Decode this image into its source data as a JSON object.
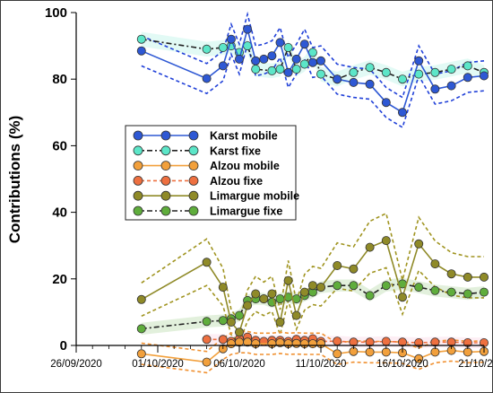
{
  "chart_data": {
    "type": "line",
    "title": "",
    "xlabel": "",
    "ylabel": "Contributions (%)",
    "xlim": [
      "2020-09-26",
      "2020-10-21"
    ],
    "ylim": [
      0,
      100
    ],
    "x_ticks": [
      "26/09/2020",
      "01/10/2020",
      "06/10/2020",
      "11/10/2020",
      "16/10/2020",
      "21/10/2020"
    ],
    "y_ticks": [
      0,
      20,
      40,
      60,
      80,
      100
    ],
    "grid": false,
    "legend_position": "center-left",
    "colors": {
      "karst_mobile": "#2e58d4",
      "karst_fixe": "#5ce6c8",
      "alzou_mobile": "#f2a03c",
      "alzou_fixe": "#ee7040",
      "limargue_mobile": "#8f8a28",
      "limargue_fixe": "#5fad3c",
      "karst_band": "#2040d8",
      "limargue_band": "#a09420",
      "alzou_band": "#f09030"
    },
    "series": [
      {
        "name": "Karst mobile",
        "x": [
          "2020-09-30",
          "2020-10-04",
          "2020-10-05",
          "2020-10-05 12:00",
          "2020-10-06",
          "2020-10-06 12:00",
          "2020-10-07",
          "2020-10-07 12:00",
          "2020-10-08",
          "2020-10-08 12:00",
          "2020-10-09",
          "2020-10-09 12:00",
          "2020-10-10",
          "2020-10-10 12:00",
          "2020-10-11",
          "2020-10-12",
          "2020-10-13",
          "2020-10-14",
          "2020-10-15",
          "2020-10-16",
          "2020-10-17",
          "2020-10-18",
          "2020-10-19",
          "2020-10-20",
          "2020-10-21"
        ],
        "y": [
          88.5,
          80.2,
          84.0,
          92.0,
          86.0,
          95.0,
          85.5,
          86.0,
          87.0,
          91.0,
          82.0,
          86.0,
          90.5,
          85.0,
          85.5,
          80.0,
          79.0,
          78.5,
          73.0,
          70.0,
          85.5,
          77.0,
          78.0,
          80.5,
          81.0
        ]
      },
      {
        "name": "Karst fixe",
        "x": [
          "2020-09-30",
          "2020-10-04",
          "2020-10-05",
          "2020-10-05 12:00",
          "2020-10-06",
          "2020-10-06 12:00",
          "2020-10-07",
          "2020-10-08",
          "2020-10-08 12:00",
          "2020-10-09",
          "2020-10-09 12:00",
          "2020-10-10",
          "2020-10-10 12:00",
          "2020-10-11",
          "2020-10-12",
          "2020-10-13",
          "2020-10-14",
          "2020-10-15",
          "2020-10-16",
          "2020-10-17",
          "2020-10-18",
          "2020-10-19",
          "2020-10-20",
          "2020-10-21"
        ],
        "y": [
          92.0,
          89.0,
          89.5,
          90.0,
          88.0,
          90.0,
          83.0,
          82.5,
          83.0,
          89.5,
          83.0,
          84.5,
          88.0,
          81.5,
          80.0,
          82.0,
          83.5,
          82.0,
          80.0,
          81.5,
          82.0,
          83.0,
          84.0,
          82.0
        ]
      },
      {
        "name": "Alzou mobile",
        "x": [
          "2020-09-30",
          "2020-10-04",
          "2020-10-05",
          "2020-10-05 12:00",
          "2020-10-06",
          "2020-10-06 12:00",
          "2020-10-07",
          "2020-10-08",
          "2020-10-08 12:00",
          "2020-10-09",
          "2020-10-09 12:00",
          "2020-10-10",
          "2020-10-10 12:00",
          "2020-10-11",
          "2020-10-12",
          "2020-10-13",
          "2020-10-14",
          "2020-10-15",
          "2020-10-16",
          "2020-10-17",
          "2020-10-18",
          "2020-10-19",
          "2020-10-20",
          "2020-10-21"
        ],
        "y": [
          -2.5,
          -5.0,
          -1.0,
          0.5,
          1.0,
          1.0,
          0.5,
          0.5,
          0.8,
          0.5,
          0.6,
          0.5,
          0.5,
          0.5,
          -2.5,
          -1.8,
          -2.0,
          -2.0,
          -2.2,
          -4.0,
          -2.0,
          -1.5,
          -2.0,
          -1.8
        ]
      },
      {
        "name": "Alzou fixe",
        "x": [
          "2020-10-04",
          "2020-10-05",
          "2020-10-05 12:00",
          "2020-10-06",
          "2020-10-06 12:00",
          "2020-10-07",
          "2020-10-07 12:00",
          "2020-10-08",
          "2020-10-08 12:00",
          "2020-10-09",
          "2020-10-09 12:00",
          "2020-10-10",
          "2020-10-10 12:00",
          "2020-10-11",
          "2020-10-12",
          "2020-10-13",
          "2020-10-14",
          "2020-10-15",
          "2020-10-16",
          "2020-10-17",
          "2020-10-18",
          "2020-10-19",
          "2020-10-20",
          "2020-10-21"
        ],
        "y": [
          1.8,
          1.8,
          1.2,
          2.0,
          2.5,
          1.5,
          1.2,
          1.5,
          1.5,
          1.2,
          1.8,
          1.5,
          2.0,
          1.2,
          1.3,
          1.0,
          1.0,
          1.2,
          1.0,
          0.8,
          1.0,
          1.0,
          0.8,
          0.8
        ]
      },
      {
        "name": "Limargue mobile",
        "x": [
          "2020-09-30",
          "2020-10-04",
          "2020-10-05",
          "2020-10-05 12:00",
          "2020-10-06",
          "2020-10-06 12:00",
          "2020-10-07",
          "2020-10-07 12:00",
          "2020-10-08",
          "2020-10-08 12:00",
          "2020-10-09",
          "2020-10-09 12:00",
          "2020-10-10",
          "2020-10-10 12:00",
          "2020-10-11",
          "2020-10-12",
          "2020-10-13",
          "2020-10-14",
          "2020-10-15",
          "2020-10-16",
          "2020-10-17",
          "2020-10-18",
          "2020-10-19",
          "2020-10-20",
          "2020-10-21"
        ],
        "y": [
          13.8,
          25.0,
          17.5,
          7.0,
          4.0,
          12.0,
          15.5,
          14.0,
          15.5,
          7.0,
          19.5,
          9.0,
          16.0,
          18.0,
          17.5,
          24.0,
          23.0,
          29.5,
          31.5,
          14.5,
          30.5,
          24.5,
          21.5,
          20.5,
          20.5
        ]
      },
      {
        "name": "Limargue fixe",
        "x": [
          "2020-09-30",
          "2020-10-04",
          "2020-10-05",
          "2020-10-05 12:00",
          "2020-10-06",
          "2020-10-06 12:00",
          "2020-10-07",
          "2020-10-07 12:00",
          "2020-10-08",
          "2020-10-08 12:00",
          "2020-10-09",
          "2020-10-09 12:00",
          "2020-10-10",
          "2020-10-10 12:00",
          "2020-10-11",
          "2020-10-12",
          "2020-10-13",
          "2020-10-14",
          "2020-10-15",
          "2020-10-16",
          "2020-10-17",
          "2020-10-18",
          "2020-10-19",
          "2020-10-20",
          "2020-10-21"
        ],
        "y": [
          5.0,
          7.2,
          7.5,
          8.0,
          9.0,
          13.5,
          14.0,
          14.0,
          13.0,
          14.0,
          14.5,
          14.0,
          15.0,
          16.0,
          17.5,
          18.0,
          18.0,
          15.0,
          18.0,
          18.5,
          17.5,
          16.5,
          16.0,
          15.5,
          16.0
        ]
      }
    ]
  }
}
